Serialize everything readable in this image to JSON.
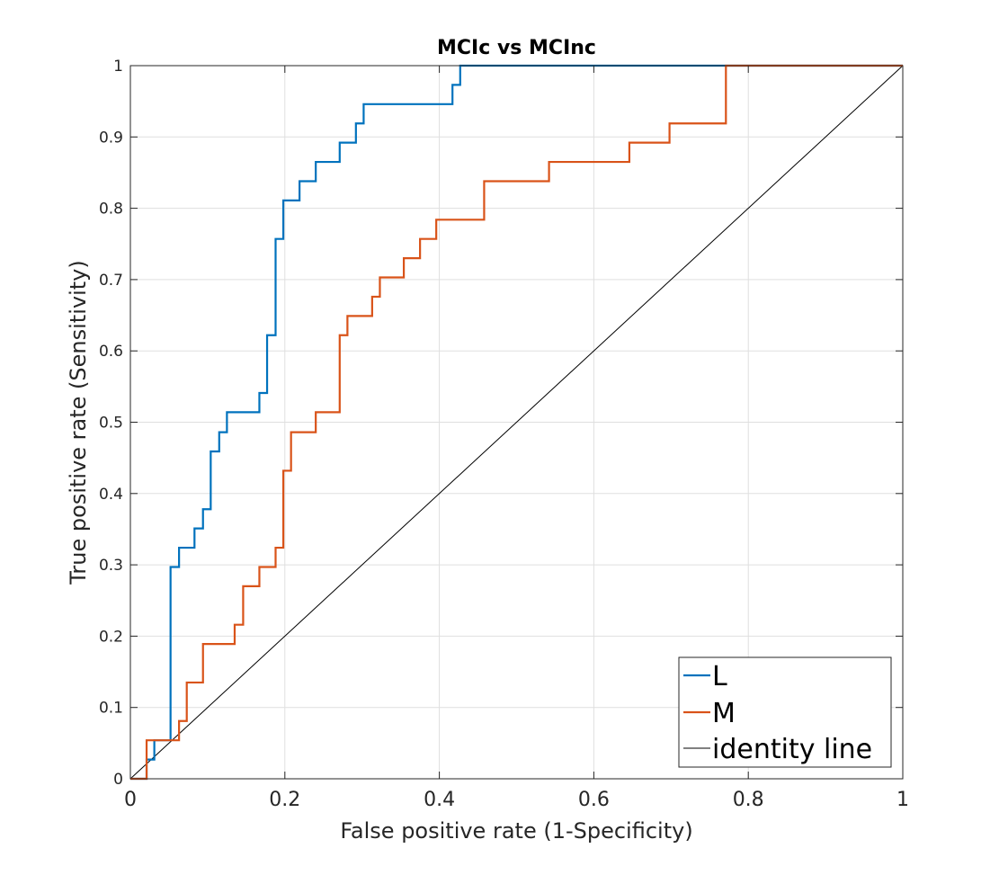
{
  "chart_data": {
    "type": "line",
    "title": "MCIc vs MCInc",
    "xlabel": "False positive rate (1-Specificity)",
    "ylabel": "True positive rate (Sensitivity)",
    "xlim": [
      0,
      1
    ],
    "ylim": [
      0,
      1
    ],
    "grid": true,
    "legend_position": "bottom-right",
    "x_ticks": [
      0,
      0.2,
      0.4,
      0.6,
      0.8,
      1
    ],
    "x_tick_labels": [
      "0",
      "0.2",
      "0.4",
      "0.6",
      "0.8",
      "1"
    ],
    "y_ticks": [
      0,
      0.1,
      0.2,
      0.3,
      0.4,
      0.5,
      0.6,
      0.7,
      0.8,
      0.9,
      1
    ],
    "y_tick_labels": [
      "0",
      "0.1",
      "0.2",
      "0.3",
      "0.4",
      "0.5",
      "0.6",
      "0.7",
      "0.8",
      "0.9",
      "1"
    ],
    "series": [
      {
        "name": "L",
        "color": "#0072BD",
        "step": true,
        "points": [
          [
            0,
            0
          ],
          [
            0.021,
            0.027
          ],
          [
            0.031,
            0.054
          ],
          [
            0.052,
            0.297
          ],
          [
            0.063,
            0.324
          ],
          [
            0.083,
            0.351
          ],
          [
            0.094,
            0.378
          ],
          [
            0.104,
            0.459
          ],
          [
            0.115,
            0.486
          ],
          [
            0.125,
            0.514
          ],
          [
            0.167,
            0.541
          ],
          [
            0.177,
            0.622
          ],
          [
            0.188,
            0.757
          ],
          [
            0.198,
            0.811
          ],
          [
            0.219,
            0.838
          ],
          [
            0.24,
            0.865
          ],
          [
            0.271,
            0.892
          ],
          [
            0.292,
            0.919
          ],
          [
            0.302,
            0.946
          ],
          [
            0.417,
            0.973
          ],
          [
            0.427,
            1.0
          ],
          [
            1.0,
            1.0
          ]
        ]
      },
      {
        "name": "M",
        "color": "#D95319",
        "step": true,
        "points": [
          [
            0,
            0
          ],
          [
            0.021,
            0.054
          ],
          [
            0.063,
            0.081
          ],
          [
            0.073,
            0.135
          ],
          [
            0.094,
            0.189
          ],
          [
            0.135,
            0.216
          ],
          [
            0.146,
            0.27
          ],
          [
            0.167,
            0.297
          ],
          [
            0.188,
            0.324
          ],
          [
            0.198,
            0.432
          ],
          [
            0.208,
            0.486
          ],
          [
            0.24,
            0.514
          ],
          [
            0.271,
            0.622
          ],
          [
            0.281,
            0.649
          ],
          [
            0.313,
            0.676
          ],
          [
            0.323,
            0.703
          ],
          [
            0.354,
            0.73
          ],
          [
            0.375,
            0.757
          ],
          [
            0.396,
            0.784
          ],
          [
            0.458,
            0.838
          ],
          [
            0.542,
            0.865
          ],
          [
            0.646,
            0.892
          ],
          [
            0.698,
            0.919
          ],
          [
            0.771,
            1.0
          ],
          [
            1.0,
            1.0
          ]
        ]
      },
      {
        "name": "identity line",
        "color": "#000000",
        "step": false,
        "points": [
          [
            0,
            0
          ],
          [
            1,
            1
          ]
        ]
      }
    ]
  }
}
